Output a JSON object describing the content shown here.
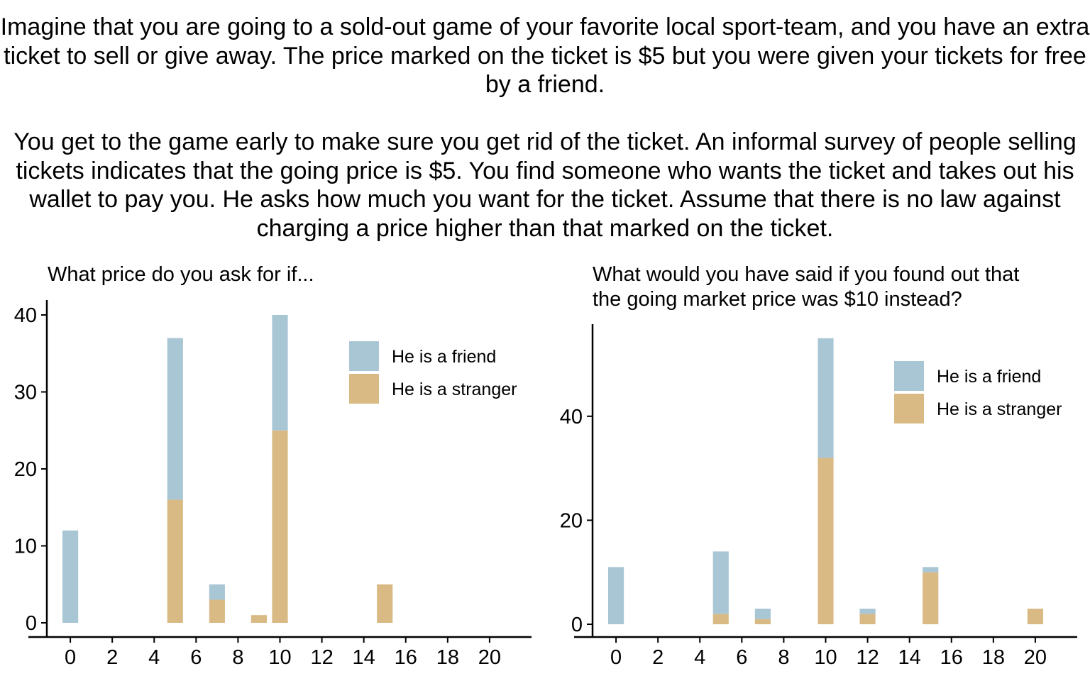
{
  "intro": {
    "paragraph1": "Imagine that you are going to a sold-out game of your favorite local sport-team, and you have an extra ticket to sell or give away. The price marked on the ticket is $5 but you were given your tickets for free by a friend.",
    "paragraph2": "You get to the game early to make sure you get rid of the ticket. An informal survey of people selling tickets indicates that the going price is $5. You find someone who wants the ticket and takes out his wallet to pay you. He asks how much you want for the ticket. Assume that there is no law against charging a price higher than that marked on the ticket."
  },
  "colors": {
    "friend": "#a9c6d5",
    "stranger": "#d9ba85"
  },
  "chart_data": [
    {
      "type": "bar",
      "stacked": true,
      "title": "What price do you ask for if...",
      "xlabel": "",
      "ylabel": "",
      "xlim": [
        -2,
        22
      ],
      "ylim": [
        0,
        40
      ],
      "x_ticks": [
        0,
        2,
        4,
        6,
        8,
        10,
        12,
        14,
        16,
        18,
        20
      ],
      "y_ticks": [
        0,
        10,
        20,
        30,
        40
      ],
      "grid": false,
      "legend_position": "top-right",
      "x": [
        0,
        5,
        7,
        9,
        10,
        15
      ],
      "series": [
        {
          "name": "He is a stranger",
          "values": [
            0,
            16,
            3,
            1,
            25,
            5
          ]
        },
        {
          "name": "He is a friend",
          "values": [
            12,
            21,
            2,
            0,
            15,
            0
          ]
        }
      ]
    },
    {
      "type": "bar",
      "stacked": true,
      "title": "What would you have said if you found out that the going market price was $10 instead?",
      "title_lines": [
        "What would you have said if you found out that",
        "the going market price was $10 instead?"
      ],
      "xlabel": "",
      "ylabel": "",
      "xlim": [
        -2,
        22
      ],
      "ylim": [
        0,
        55
      ],
      "x_ticks": [
        0,
        2,
        4,
        6,
        8,
        10,
        12,
        14,
        16,
        18,
        20
      ],
      "y_ticks": [
        0,
        20,
        40
      ],
      "grid": false,
      "legend_position": "top-right",
      "x": [
        0,
        5,
        7,
        10,
        12,
        15,
        20
      ],
      "series": [
        {
          "name": "He is a stranger",
          "values": [
            0,
            2,
            1,
            32,
            2,
            10,
            3
          ]
        },
        {
          "name": "He is a friend",
          "values": [
            11,
            12,
            2,
            23,
            1,
            1,
            0
          ]
        }
      ]
    }
  ]
}
